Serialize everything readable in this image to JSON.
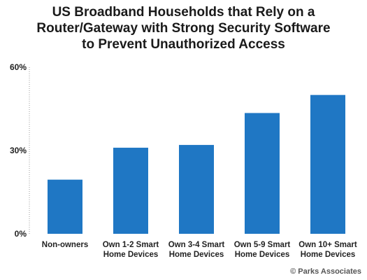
{
  "title_lines": [
    "US Broadband Households that Rely on a",
    "Router/Gateway with Strong Security Software",
    "to Prevent Unauthorized Access"
  ],
  "source": "© Parks Associates",
  "colors": {
    "bar": "#1f77c4",
    "axis": "#999999"
  },
  "chart_data": {
    "type": "bar",
    "title": "US Broadband Households that Rely on a Router/Gateway with Strong Security Software to Prevent Unauthorized Access",
    "categories": [
      [
        "Non-owners"
      ],
      [
        "Own 1-2 Smart",
        "Home Devices"
      ],
      [
        "Own 3-4 Smart",
        "Home Devices"
      ],
      [
        "Own 5-9 Smart",
        "Home Devices"
      ],
      [
        "Own 10+ Smart",
        "Home Devices"
      ]
    ],
    "values": [
      19.5,
      31,
      32,
      43.5,
      50
    ],
    "ylim": [
      0,
      60
    ],
    "yticks": [
      0,
      30,
      60
    ],
    "ytick_labels": [
      "0%",
      "30%",
      "60%"
    ],
    "xlabel": "",
    "ylabel": "",
    "grid": false
  }
}
